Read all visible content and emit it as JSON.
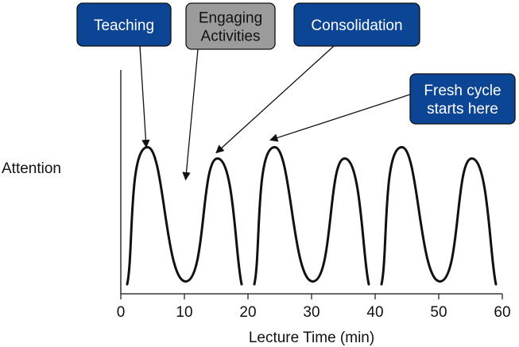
{
  "chart_data": {
    "type": "line",
    "title": "",
    "xlabel": "Lecture Time (min)",
    "ylabel": "Attention",
    "xlim": [
      0,
      60
    ],
    "x_ticks": [
      0,
      10,
      20,
      30,
      40,
      50,
      60
    ],
    "grid": false,
    "colors": {
      "line": "#111111",
      "blue_box": "#0d4595",
      "gray_box": "#9b9b9b",
      "box_text": "#ffffff",
      "gray_box_text": "#111111"
    },
    "segments": [
      {
        "start": 1,
        "end": 19,
        "peak_center": 4.2,
        "peak_height": 0.97,
        "trough_center": 10.2,
        "second_peak_center": 15.2,
        "second_peak_height": 0.89
      },
      {
        "start": 21,
        "end": 39,
        "peak_center": 24.2,
        "peak_height": 0.97,
        "trough_center": 30.2,
        "second_peak_center": 35.2,
        "second_peak_height": 0.89
      },
      {
        "start": 41,
        "end": 59,
        "peak_center": 44.2,
        "peak_height": 0.97,
        "trough_center": 50.2,
        "second_peak_center": 55.2,
        "second_peak_height": 0.89
      }
    ],
    "annotations": [
      {
        "label": "Teaching",
        "style": "blue",
        "arrow_x": 4.0,
        "arrow_y": 0.97
      },
      {
        "label": "Engaging\nActivities",
        "style": "gray",
        "arrow_x": 10.2,
        "arrow_y": 0.74
      },
      {
        "label": "Consolidation",
        "style": "blue",
        "arrow_x": 15.0,
        "arrow_y": 0.93
      },
      {
        "label": "Fresh cycle\nstarts here",
        "style": "blue",
        "arrow_x": 23.5,
        "arrow_y": 1.02
      }
    ]
  }
}
